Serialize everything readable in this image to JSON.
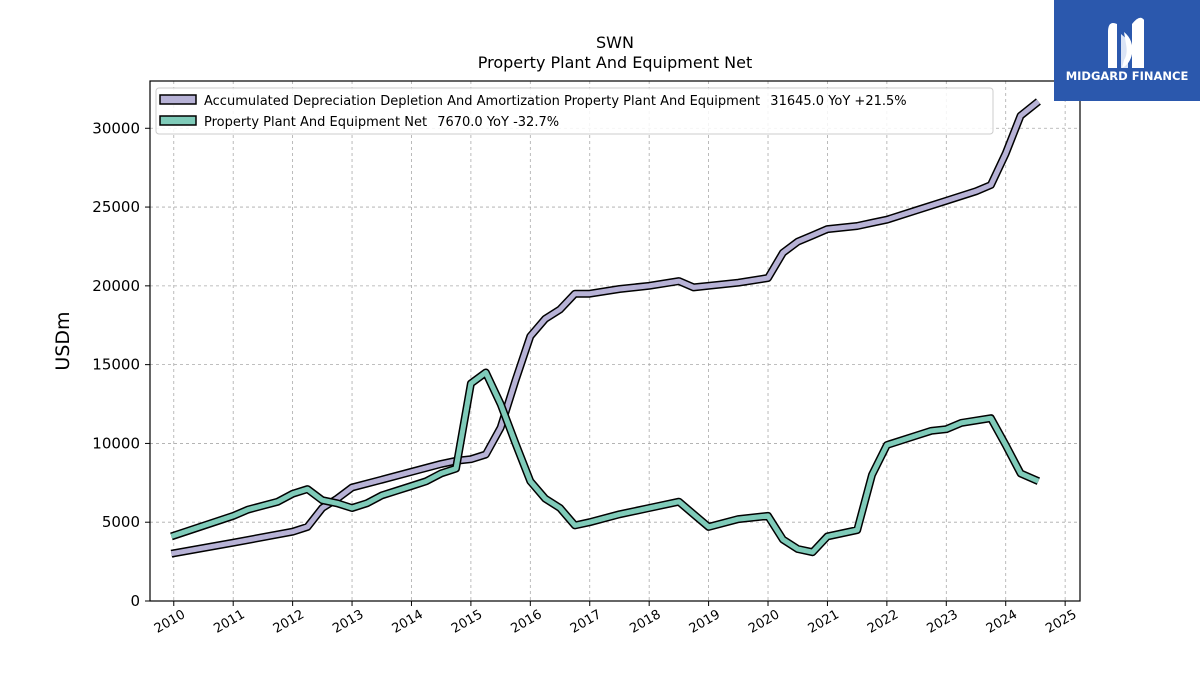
{
  "brand": {
    "name": "MIDGARD FINANCE",
    "bg": "#2b58ad"
  },
  "chart_data": {
    "type": "line",
    "title": "SWN",
    "subtitle": "Property Plant And Equipment Net",
    "xlabel": "",
    "ylabel": "USDm",
    "xlim": [
      2009.6,
      2025.25
    ],
    "ylim": [
      0,
      33000
    ],
    "grid": true,
    "legend_position": "top-left",
    "x_ticks": [
      "2010",
      "2011",
      "2012",
      "2013",
      "2014",
      "2015",
      "2016",
      "2017",
      "2018",
      "2019",
      "2020",
      "2021",
      "2022",
      "2023",
      "2024",
      "2025"
    ],
    "y_ticks": [
      "0",
      "5000",
      "10000",
      "15000",
      "20000",
      "25000",
      "30000"
    ],
    "series": [
      {
        "name": "Accumulated Depreciation Depletion And Amortization Property Plant And Equipment",
        "legend_suffix": "31645.0 YoY +21.5%",
        "color": "#b7b2d6",
        "points": [
          [
            2009.96,
            3000
          ],
          [
            2011.0,
            3700
          ],
          [
            2012.0,
            4400
          ],
          [
            2012.25,
            4700
          ],
          [
            2012.5,
            5900
          ],
          [
            2012.75,
            6500
          ],
          [
            2013.0,
            7200
          ],
          [
            2013.5,
            7700
          ],
          [
            2014.0,
            8200
          ],
          [
            2014.5,
            8700
          ],
          [
            2014.75,
            8900
          ],
          [
            2015.0,
            9000
          ],
          [
            2015.25,
            9300
          ],
          [
            2015.5,
            11000
          ],
          [
            2015.75,
            14000
          ],
          [
            2016.0,
            16800
          ],
          [
            2016.25,
            17900
          ],
          [
            2016.5,
            18500
          ],
          [
            2016.75,
            19500
          ],
          [
            2017.0,
            19500
          ],
          [
            2017.5,
            19800
          ],
          [
            2018.0,
            20000
          ],
          [
            2018.5,
            20300
          ],
          [
            2018.75,
            19900
          ],
          [
            2019.0,
            20000
          ],
          [
            2019.5,
            20200
          ],
          [
            2020.0,
            20500
          ],
          [
            2020.25,
            22100
          ],
          [
            2020.5,
            22800
          ],
          [
            2020.75,
            23200
          ],
          [
            2021.0,
            23600
          ],
          [
            2021.5,
            23800
          ],
          [
            2021.75,
            24000
          ],
          [
            2022.0,
            24200
          ],
          [
            2022.5,
            24800
          ],
          [
            2023.0,
            25400
          ],
          [
            2023.5,
            26000
          ],
          [
            2023.75,
            26400
          ],
          [
            2024.0,
            28400
          ],
          [
            2024.25,
            30800
          ],
          [
            2024.55,
            31700
          ]
        ]
      },
      {
        "name": "Property Plant And Equipment Net",
        "legend_suffix": "7670.0 YoY -32.7%",
        "color": "#7fcbb9",
        "points": [
          [
            2009.96,
            4100
          ],
          [
            2011.0,
            5400
          ],
          [
            2011.25,
            5800
          ],
          [
            2011.75,
            6300
          ],
          [
            2012.0,
            6800
          ],
          [
            2012.25,
            7100
          ],
          [
            2012.5,
            6400
          ],
          [
            2012.75,
            6200
          ],
          [
            2013.0,
            5900
          ],
          [
            2013.25,
            6200
          ],
          [
            2013.5,
            6700
          ],
          [
            2013.75,
            7000
          ],
          [
            2014.0,
            7300
          ],
          [
            2014.25,
            7600
          ],
          [
            2014.5,
            8100
          ],
          [
            2014.75,
            8400
          ],
          [
            2015.0,
            13800
          ],
          [
            2015.25,
            14500
          ],
          [
            2015.5,
            12500
          ],
          [
            2015.75,
            10000
          ],
          [
            2016.0,
            7600
          ],
          [
            2016.25,
            6500
          ],
          [
            2016.5,
            5900
          ],
          [
            2016.75,
            4800
          ],
          [
            2017.0,
            5000
          ],
          [
            2017.5,
            5500
          ],
          [
            2018.0,
            5900
          ],
          [
            2018.5,
            6300
          ],
          [
            2018.75,
            5500
          ],
          [
            2019.0,
            4700
          ],
          [
            2019.5,
            5200
          ],
          [
            2020.0,
            5400
          ],
          [
            2020.25,
            3900
          ],
          [
            2020.5,
            3300
          ],
          [
            2020.75,
            3100
          ],
          [
            2021.0,
            4100
          ],
          [
            2021.5,
            4500
          ],
          [
            2021.75,
            8000
          ],
          [
            2022.0,
            9900
          ],
          [
            2022.5,
            10500
          ],
          [
            2022.75,
            10800
          ],
          [
            2023.0,
            10900
          ],
          [
            2023.25,
            11300
          ],
          [
            2023.75,
            11600
          ],
          [
            2024.0,
            9900
          ],
          [
            2024.25,
            8100
          ],
          [
            2024.55,
            7600
          ]
        ]
      }
    ]
  }
}
